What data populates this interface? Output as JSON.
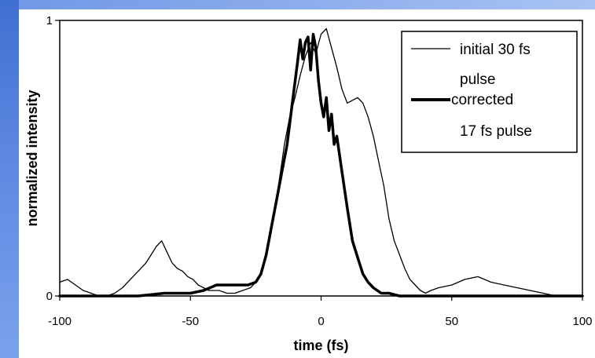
{
  "chart_data": {
    "type": "line",
    "xlabel": "time (fs)",
    "ylabel": "normalized intensity",
    "xlim": [
      -100,
      100
    ],
    "ylim": [
      0,
      1
    ],
    "x_ticks": [
      "-100",
      "-50",
      "0",
      "50",
      "100"
    ],
    "y_ticks": [
      "0",
      "1"
    ],
    "grid": false,
    "legend_position": "top-right",
    "series": [
      {
        "name_lines": [
          "initial 30 fs",
          "pulse"
        ],
        "style": "thin",
        "color": "#000000",
        "x": [
          -100,
          -97,
          -94,
          -91,
          -88,
          -85,
          -82,
          -79,
          -76,
          -73,
          -70,
          -67,
          -65,
          -63,
          -61,
          -59,
          -57,
          -55,
          -53,
          -51,
          -49,
          -47,
          -45,
          -43,
          -41,
          -39,
          -36,
          -33,
          -30,
          -27,
          -24,
          -22,
          -20,
          -18,
          -16,
          -14,
          -12,
          -10,
          -8,
          -6,
          -4,
          -2,
          0,
          2,
          4,
          6,
          8,
          10,
          12,
          14,
          16,
          18,
          20,
          22,
          24,
          26,
          28,
          30,
          32,
          34,
          36,
          38,
          40,
          42,
          45,
          50,
          55,
          60,
          65,
          70,
          75,
          80,
          85,
          90,
          95,
          100
        ],
        "y": [
          0.05,
          0.06,
          0.04,
          0.02,
          0.01,
          0.0,
          0.0,
          0.01,
          0.03,
          0.06,
          0.09,
          0.12,
          0.15,
          0.18,
          0.2,
          0.16,
          0.12,
          0.1,
          0.09,
          0.07,
          0.06,
          0.04,
          0.03,
          0.02,
          0.02,
          0.02,
          0.01,
          0.01,
          0.02,
          0.03,
          0.06,
          0.12,
          0.2,
          0.3,
          0.42,
          0.55,
          0.65,
          0.72,
          0.8,
          0.87,
          0.92,
          0.88,
          0.95,
          0.97,
          0.9,
          0.83,
          0.75,
          0.7,
          0.71,
          0.72,
          0.7,
          0.65,
          0.58,
          0.49,
          0.4,
          0.28,
          0.2,
          0.15,
          0.1,
          0.06,
          0.04,
          0.02,
          0.01,
          0.02,
          0.03,
          0.04,
          0.06,
          0.07,
          0.05,
          0.04,
          0.03,
          0.02,
          0.01,
          0.0,
          0.0,
          0.0
        ]
      },
      {
        "name_lines": [
          "corrected",
          "17 fs pulse"
        ],
        "style": "thick",
        "color": "#000000",
        "x": [
          -100,
          -90,
          -80,
          -70,
          -60,
          -50,
          -45,
          -40,
          -36,
          -32,
          -28,
          -25,
          -23,
          -21,
          -19,
          -17,
          -15,
          -13,
          -11,
          -9,
          -8,
          -7,
          -6,
          -5,
          -4,
          -3,
          -2,
          -1,
          0,
          1,
          2,
          3,
          4,
          5,
          6,
          8,
          10,
          12,
          14,
          16,
          18,
          20,
          23,
          26,
          30,
          35,
          40,
          50,
          60,
          70,
          80,
          90,
          100
        ],
        "y": [
          0.0,
          0.0,
          0.0,
          0.0,
          0.01,
          0.01,
          0.02,
          0.04,
          0.04,
          0.04,
          0.04,
          0.05,
          0.08,
          0.15,
          0.25,
          0.35,
          0.45,
          0.55,
          0.7,
          0.85,
          0.93,
          0.86,
          0.92,
          0.94,
          0.82,
          0.95,
          0.9,
          0.78,
          0.7,
          0.65,
          0.72,
          0.6,
          0.66,
          0.55,
          0.58,
          0.45,
          0.32,
          0.2,
          0.14,
          0.08,
          0.05,
          0.03,
          0.01,
          0.01,
          0.0,
          0.0,
          0.0,
          0.0,
          0.0,
          0.0,
          0.0,
          0.0,
          0.0
        ]
      }
    ]
  }
}
